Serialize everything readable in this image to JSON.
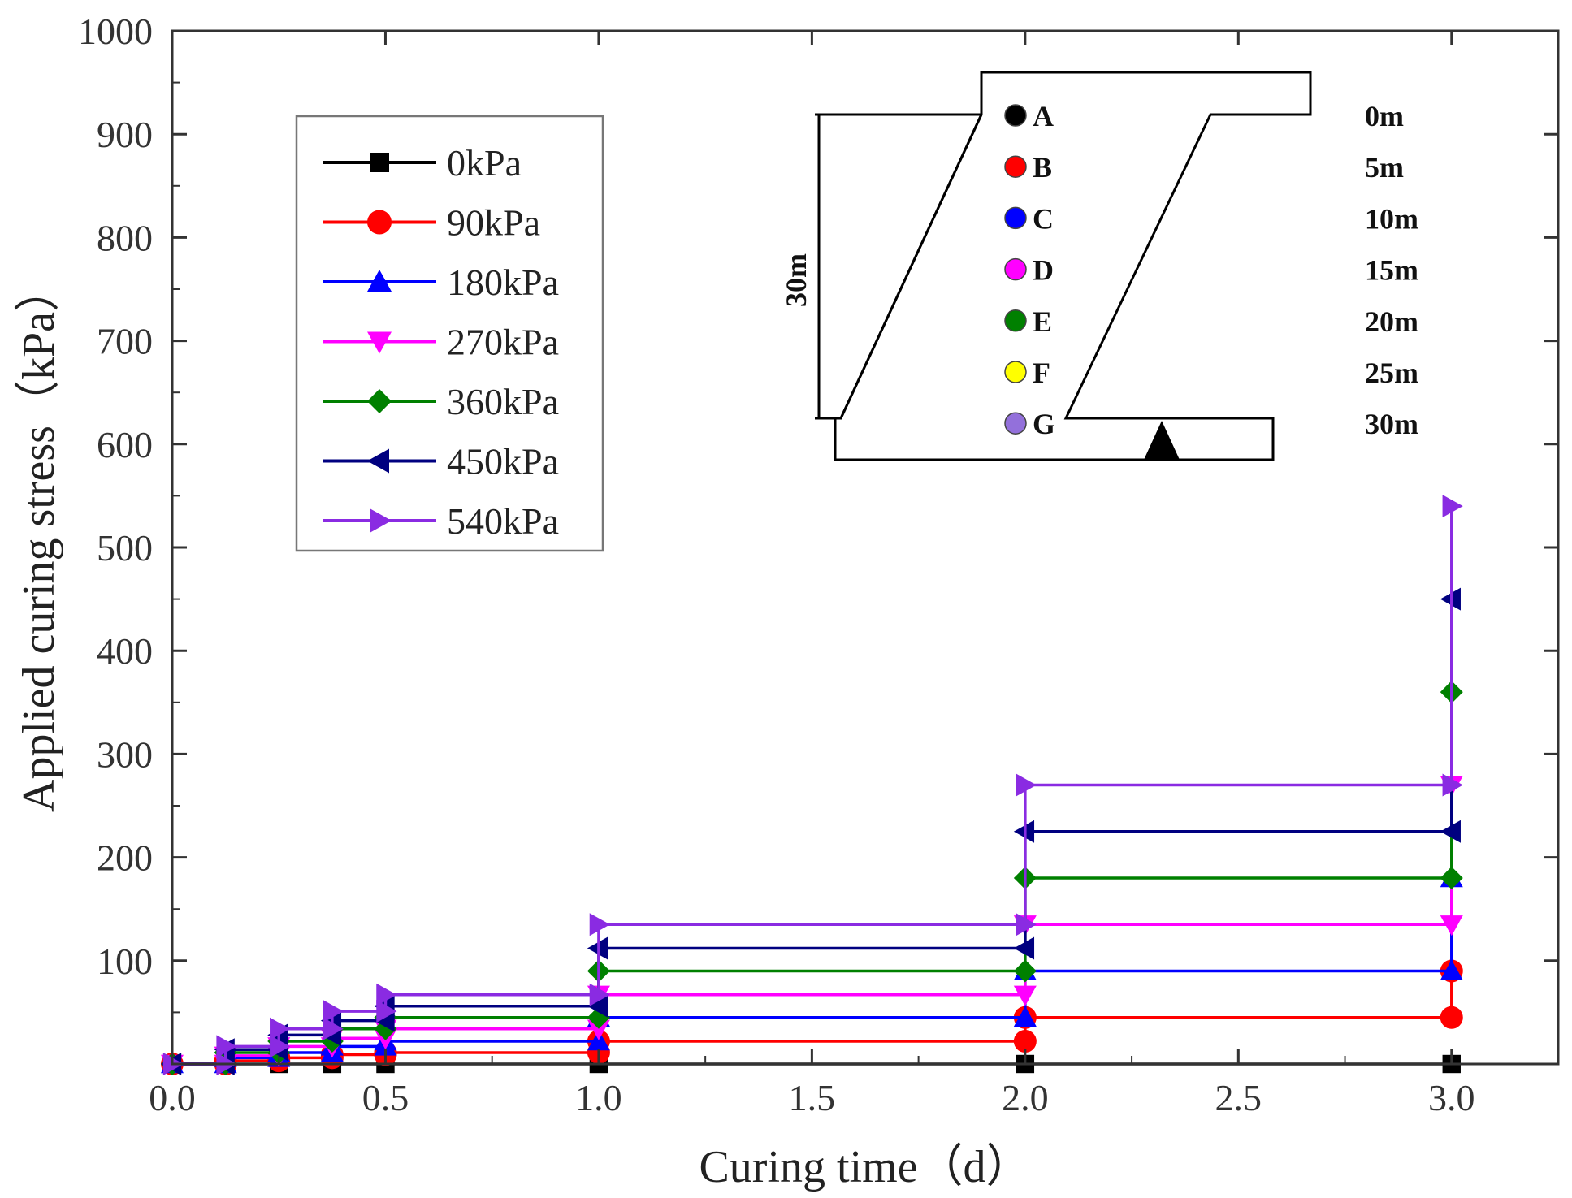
{
  "chart_data": {
    "type": "line",
    "step": true,
    "xlabel": "Curing time（d）",
    "ylabel": "Applied curing stress（kPa）",
    "xlim": [
      0,
      3.25
    ],
    "ylim": [
      0,
      1000
    ],
    "xticks": [
      "0.0",
      "0.5",
      "1.0",
      "1.5",
      "2.0",
      "2.5",
      "3.0"
    ],
    "yticks": [
      "100",
      "200",
      "300",
      "400",
      "500",
      "600",
      "700",
      "800",
      "900",
      "1000"
    ],
    "legend_position": "upper-left",
    "series": [
      {
        "name": "0kPa",
        "color": "#000000",
        "marker": "square",
        "x": [
          0,
          0.125,
          0.25,
          0.375,
          0.5,
          1.0,
          2.0,
          3.0
        ],
        "y": [
          0,
          0,
          0,
          0,
          0,
          0,
          0,
          0
        ]
      },
      {
        "name": "90kPa",
        "color": "#ff0000",
        "marker": "circle",
        "x": [
          0,
          0.125,
          0.25,
          0.375,
          0.5,
          1.0,
          2.0,
          3.0
        ],
        "y": [
          0,
          3,
          6,
          9,
          11,
          22,
          45,
          90
        ]
      },
      {
        "name": "180kPa",
        "color": "#0000ff",
        "marker": "triangle-up",
        "x": [
          0,
          0.125,
          0.25,
          0.375,
          0.5,
          1.0,
          2.0,
          3.0
        ],
        "y": [
          0,
          6,
          11,
          17,
          22,
          45,
          90,
          180
        ]
      },
      {
        "name": "270kPa",
        "color": "#ff00ff",
        "marker": "triangle-down",
        "x": [
          0,
          0.125,
          0.25,
          0.375,
          0.5,
          1.0,
          2.0,
          3.0
        ],
        "y": [
          0,
          8,
          17,
          25,
          34,
          67,
          135,
          270
        ]
      },
      {
        "name": "360kPa",
        "color": "#008000",
        "marker": "diamond",
        "x": [
          0,
          0.125,
          0.25,
          0.375,
          0.5,
          1.0,
          2.0,
          3.0
        ],
        "y": [
          0,
          11,
          22,
          34,
          45,
          90,
          180,
          360
        ]
      },
      {
        "name": "450kPa",
        "color": "#000080",
        "marker": "triangle-left",
        "x": [
          0,
          0.125,
          0.25,
          0.375,
          0.5,
          1.0,
          2.0,
          3.0
        ],
        "y": [
          0,
          14,
          28,
          42,
          56,
          112,
          225,
          450
        ]
      },
      {
        "name": "540kPa",
        "color": "#8a2be2",
        "marker": "triangle-right",
        "x": [
          0,
          0.125,
          0.25,
          0.375,
          0.5,
          1.0,
          2.0,
          3.0
        ],
        "y": [
          0,
          17,
          34,
          51,
          67,
          135,
          270,
          540
        ]
      }
    ],
    "inset": {
      "height_label": "30m",
      "points": [
        {
          "name": "A",
          "depth": "0m",
          "color": "#000000"
        },
        {
          "name": "B",
          "depth": "5m",
          "color": "#ff0000"
        },
        {
          "name": "C",
          "depth": "10m",
          "color": "#0000ff"
        },
        {
          "name": "D",
          "depth": "15m",
          "color": "#ff00ff"
        },
        {
          "name": "E",
          "depth": "20m",
          "color": "#008000"
        },
        {
          "name": "F",
          "depth": "25m",
          "color": "#ffff00"
        },
        {
          "name": "G",
          "depth": "30m",
          "color": "#9370db"
        }
      ]
    }
  }
}
